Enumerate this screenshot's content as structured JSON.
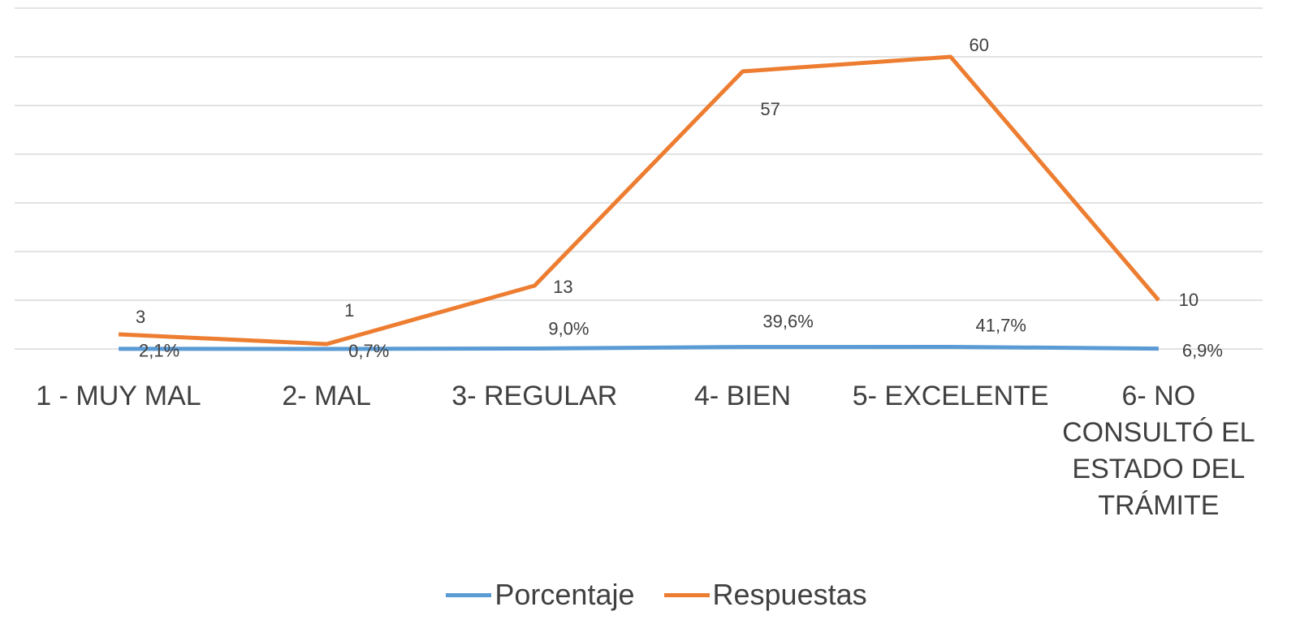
{
  "chart_data": {
    "type": "line",
    "categories": [
      "1 - MUY MAL",
      "2- MAL",
      "3- REGULAR",
      "4- BIEN",
      "5- EXCELENTE",
      "6- NO CONSULTÓ EL ESTADO DEL TRÁMITE"
    ],
    "series": [
      {
        "name": "Porcentaje",
        "color": "#5b9bd5",
        "values": [
          0.021,
          0.007,
          0.09,
          0.396,
          0.417,
          0.069
        ],
        "value_labels": [
          "2,1%",
          "0,7%",
          "9,0%",
          "39,6%",
          "41,7%",
          "6,9%"
        ]
      },
      {
        "name": "Respuestas",
        "color": "#ed7d31",
        "values": [
          3,
          1,
          13,
          57,
          60,
          10
        ]
      }
    ],
    "ylim": [
      0,
      70
    ],
    "yticks": [
      0,
      10,
      20,
      30,
      40,
      50,
      60,
      70
    ],
    "grid": true,
    "legend": "bottom"
  }
}
